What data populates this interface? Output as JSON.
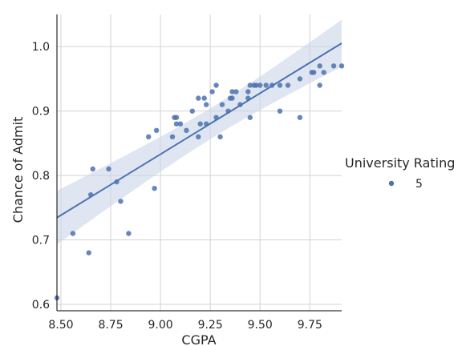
{
  "chart_data": {
    "type": "scatter",
    "xlabel": "CGPA",
    "ylabel": "Chance of Admit",
    "xlim": [
      8.48,
      9.91
    ],
    "ylim": [
      0.59,
      1.05
    ],
    "xticks": [
      "8.50",
      "8.75",
      "9.00",
      "9.25",
      "9.50",
      "9.75"
    ],
    "yticks": [
      "0.6",
      "0.7",
      "0.8",
      "0.9",
      "1.0"
    ],
    "grid": true,
    "legend": {
      "title": "University Rating",
      "placement": "right",
      "entries": [
        "5"
      ]
    },
    "colors": {
      "points": "#4c72b0",
      "line": "#4c72b0",
      "band": "#c9d5ea",
      "grid": "#d3d3d3"
    },
    "series": [
      {
        "points": [
          [
            8.48,
            0.61
          ],
          [
            8.56,
            0.71
          ],
          [
            8.64,
            0.68
          ],
          [
            8.65,
            0.77
          ],
          [
            8.66,
            0.81
          ],
          [
            8.74,
            0.81
          ],
          [
            8.78,
            0.79
          ],
          [
            8.8,
            0.76
          ],
          [
            8.84,
            0.71
          ],
          [
            8.94,
            0.86
          ],
          [
            8.97,
            0.78
          ],
          [
            8.98,
            0.87
          ],
          [
            9.06,
            0.86
          ],
          [
            9.07,
            0.89
          ],
          [
            9.08,
            0.88
          ],
          [
            9.08,
            0.89
          ],
          [
            9.1,
            0.88
          ],
          [
            9.13,
            0.87
          ],
          [
            9.16,
            0.9
          ],
          [
            9.19,
            0.86
          ],
          [
            9.19,
            0.92
          ],
          [
            9.2,
            0.88
          ],
          [
            9.22,
            0.92
          ],
          [
            9.23,
            0.88
          ],
          [
            9.23,
            0.91
          ],
          [
            9.26,
            0.93
          ],
          [
            9.28,
            0.94
          ],
          [
            9.28,
            0.89
          ],
          [
            9.3,
            0.86
          ],
          [
            9.31,
            0.91
          ],
          [
            9.34,
            0.9
          ],
          [
            9.35,
            0.92
          ],
          [
            9.36,
            0.93
          ],
          [
            9.36,
            0.92
          ],
          [
            9.38,
            0.93
          ],
          [
            9.4,
            0.91
          ],
          [
            9.44,
            0.92
          ],
          [
            9.44,
            0.93
          ],
          [
            9.45,
            0.89
          ],
          [
            9.45,
            0.94
          ],
          [
            9.47,
            0.94
          ],
          [
            9.48,
            0.94
          ],
          [
            9.5,
            0.94
          ],
          [
            9.53,
            0.94
          ],
          [
            9.56,
            0.94
          ],
          [
            9.6,
            0.94
          ],
          [
            9.6,
            0.9
          ],
          [
            9.64,
            0.94
          ],
          [
            9.7,
            0.95
          ],
          [
            9.7,
            0.89
          ],
          [
            9.76,
            0.96
          ],
          [
            9.77,
            0.96
          ],
          [
            9.8,
            0.97
          ],
          [
            9.8,
            0.94
          ],
          [
            9.82,
            0.96
          ],
          [
            9.87,
            0.97
          ],
          [
            9.91,
            0.97
          ]
        ]
      }
    ],
    "regression": {
      "slope": 0.1893,
      "intercept": -0.8707
    }
  }
}
